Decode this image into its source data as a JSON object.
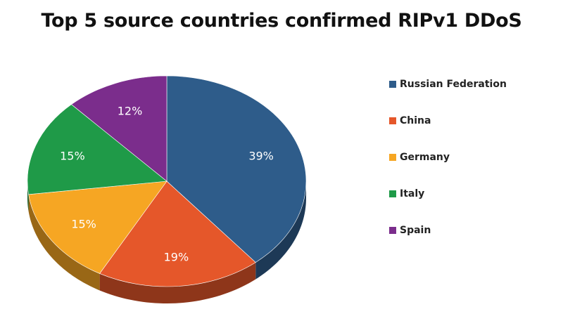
{
  "chart_data": {
    "type": "pie",
    "title": "Top 5 source countries confirmed RIPv1 DDoS",
    "slices": [
      {
        "label": "Russian Federation",
        "value": 39,
        "display": "39%",
        "color": "#2E5C8A"
      },
      {
        "label": "China",
        "value": 19,
        "display": "19%",
        "color": "#E5572A"
      },
      {
        "label": "Germany",
        "value": 15,
        "display": "15%",
        "color": "#F6A623"
      },
      {
        "label": "Italy",
        "value": 15,
        "display": "15%",
        "color": "#1F9A48"
      },
      {
        "label": "Spain",
        "value": 12,
        "display": "12%",
        "color": "#7B2D8C"
      }
    ],
    "legend_position": "right",
    "style": "3d"
  }
}
